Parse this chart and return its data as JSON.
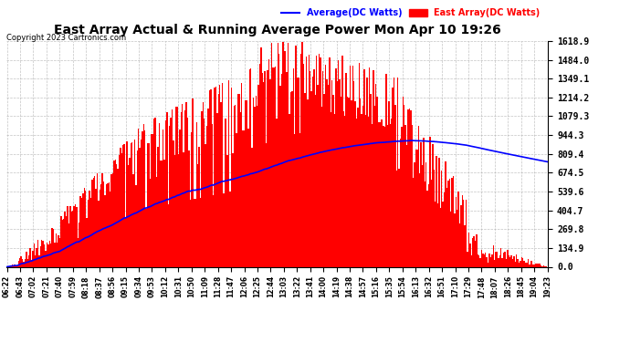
{
  "title": "East Array Actual & Running Average Power Mon Apr 10 19:26",
  "copyright": "Copyright 2023 Cartronics.com",
  "legend_avg": "Average(DC Watts)",
  "legend_east": "East Array(DC Watts)",
  "ylabel_right_values": [
    1618.9,
    1484.0,
    1349.1,
    1214.2,
    1079.3,
    944.3,
    809.4,
    674.5,
    539.6,
    404.7,
    269.8,
    134.9,
    0.0
  ],
  "ymax": 1618.9,
  "ymin": 0.0,
  "background_color": "#ffffff",
  "plot_bg_color": "#ffffff",
  "grid_color": "#aaaaaa",
  "bar_color": "#ff0000",
  "avg_line_color": "#0000ff",
  "title_color": "#000000",
  "copyright_color": "#000000",
  "legend_avg_color": "#0000ff",
  "legend_east_color": "#ff0000",
  "xtick_labels": [
    "06:22",
    "06:43",
    "07:02",
    "07:21",
    "07:40",
    "07:59",
    "08:18",
    "08:37",
    "08:56",
    "09:15",
    "09:34",
    "09:53",
    "10:12",
    "10:31",
    "10:50",
    "11:09",
    "11:28",
    "11:47",
    "12:06",
    "12:25",
    "12:44",
    "13:03",
    "13:22",
    "13:41",
    "14:00",
    "14:19",
    "14:38",
    "14:57",
    "15:16",
    "15:35",
    "15:54",
    "16:13",
    "16:32",
    "16:51",
    "17:10",
    "17:29",
    "17:48",
    "18:07",
    "18:26",
    "18:45",
    "19:04",
    "19:23"
  ]
}
